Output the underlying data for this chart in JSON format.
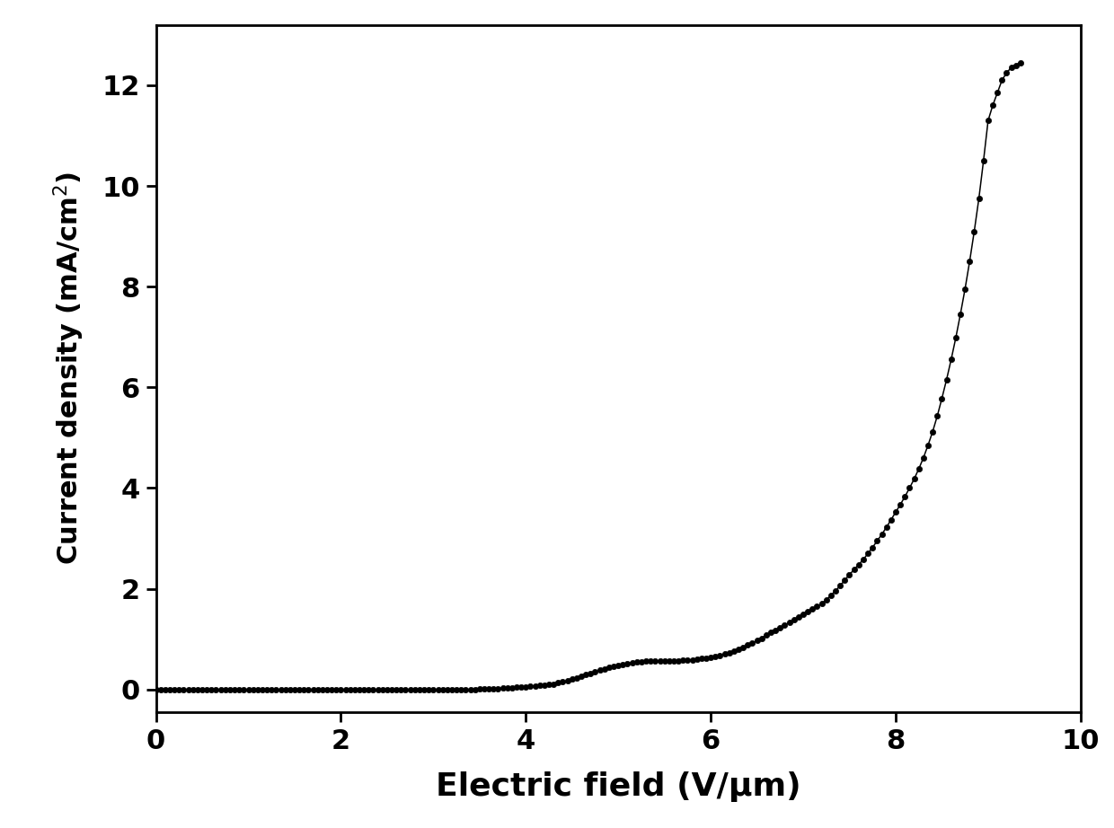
{
  "xlabel": "Electric field (V/μm)",
  "ylabel": "Current density (mA/cm$^2$)",
  "xlim": [
    0,
    10
  ],
  "ylim": [
    -0.45,
    13.2
  ],
  "xticks": [
    0,
    2,
    4,
    6,
    8,
    10
  ],
  "yticks": [
    0,
    2,
    4,
    6,
    8,
    10,
    12
  ],
  "line_color": "#000000",
  "marker_color": "#000000",
  "marker_size": 4.5,
  "line_width": 1.1,
  "background_color": "#ffffff",
  "xlabel_fontsize": 26,
  "ylabel_fontsize": 22,
  "tick_fontsize": 22,
  "x_data": [
    0.0,
    0.05,
    0.1,
    0.15,
    0.2,
    0.25,
    0.3,
    0.35,
    0.4,
    0.45,
    0.5,
    0.55,
    0.6,
    0.65,
    0.7,
    0.75,
    0.8,
    0.85,
    0.9,
    0.95,
    1.0,
    1.05,
    1.1,
    1.15,
    1.2,
    1.25,
    1.3,
    1.35,
    1.4,
    1.45,
    1.5,
    1.55,
    1.6,
    1.65,
    1.7,
    1.75,
    1.8,
    1.85,
    1.9,
    1.95,
    2.0,
    2.05,
    2.1,
    2.15,
    2.2,
    2.25,
    2.3,
    2.35,
    2.4,
    2.45,
    2.5,
    2.55,
    2.6,
    2.65,
    2.7,
    2.75,
    2.8,
    2.85,
    2.9,
    2.95,
    3.0,
    3.05,
    3.1,
    3.15,
    3.2,
    3.25,
    3.3,
    3.35,
    3.4,
    3.45,
    3.5,
    3.55,
    3.6,
    3.65,
    3.7,
    3.75,
    3.8,
    3.85,
    3.9,
    3.95,
    4.0,
    4.05,
    4.1,
    4.15,
    4.2,
    4.25,
    4.3,
    4.35,
    4.4,
    4.45,
    4.5,
    4.55,
    4.6,
    4.65,
    4.7,
    4.75,
    4.8,
    4.85,
    4.9,
    4.95,
    5.0,
    5.05,
    5.1,
    5.15,
    5.2,
    5.25,
    5.3,
    5.35,
    5.4,
    5.45,
    5.5,
    5.55,
    5.6,
    5.65,
    5.7,
    5.75,
    5.8,
    5.85,
    5.9,
    5.95,
    6.0,
    6.05,
    6.1,
    6.15,
    6.2,
    6.25,
    6.3,
    6.35,
    6.4,
    6.45,
    6.5,
    6.55,
    6.6,
    6.65,
    6.7,
    6.75,
    6.8,
    6.85,
    6.9,
    6.95,
    7.0,
    7.05,
    7.1,
    7.15,
    7.2,
    7.25,
    7.3,
    7.35,
    7.4,
    7.45,
    7.5,
    7.55,
    7.6,
    7.65,
    7.7,
    7.75,
    7.8,
    7.85,
    7.9,
    7.95,
    8.0,
    8.05,
    8.1,
    8.15,
    8.2,
    8.25,
    8.3,
    8.35,
    8.4,
    8.45,
    8.5,
    8.55,
    8.6,
    8.65,
    8.7,
    8.75,
    8.8,
    8.85,
    8.9,
    8.95,
    9.0,
    9.05,
    9.1,
    9.15,
    9.2,
    9.25,
    9.3,
    9.35
  ],
  "y_data": [
    0.0,
    0.0,
    0.0,
    0.0,
    0.0,
    0.0,
    0.0,
    0.0,
    0.0,
    0.0,
    0.0,
    0.0,
    0.0,
    0.0,
    0.0,
    0.0,
    0.0,
    0.0,
    0.0,
    0.0,
    0.0,
    0.0,
    0.0,
    0.0,
    0.0,
    0.0,
    0.0,
    0.0,
    0.0,
    0.0,
    0.0,
    0.0,
    0.0,
    0.0,
    0.0,
    0.0,
    0.0,
    0.0,
    0.0,
    0.0,
    0.0,
    0.0,
    0.0,
    0.0,
    0.0,
    0.0,
    0.0,
    0.0,
    0.0,
    0.0,
    0.0,
    0.0,
    0.0,
    0.0,
    0.0,
    0.0,
    0.0,
    0.0,
    0.0,
    0.0,
    0.0,
    0.0,
    0.0,
    0.0,
    0.0,
    0.0,
    0.0,
    0.0,
    0.0,
    0.0,
    0.005,
    0.008,
    0.01,
    0.015,
    0.02,
    0.025,
    0.03,
    0.035,
    0.04,
    0.045,
    0.05,
    0.06,
    0.07,
    0.08,
    0.09,
    0.1,
    0.11,
    0.13,
    0.15,
    0.17,
    0.2,
    0.23,
    0.26,
    0.29,
    0.32,
    0.35,
    0.38,
    0.41,
    0.44,
    0.46,
    0.48,
    0.5,
    0.52,
    0.53,
    0.54,
    0.55,
    0.56,
    0.57,
    0.57,
    0.57,
    0.56,
    0.56,
    0.57,
    0.57,
    0.58,
    0.58,
    0.59,
    0.6,
    0.61,
    0.62,
    0.64,
    0.66,
    0.68,
    0.7,
    0.73,
    0.76,
    0.8,
    0.84,
    0.88,
    0.92,
    0.97,
    1.02,
    1.08,
    1.13,
    1.18,
    1.23,
    1.28,
    1.33,
    1.38,
    1.44,
    1.5,
    1.55,
    1.6,
    1.65,
    1.7,
    1.78,
    1.87,
    1.96,
    2.06,
    2.17,
    2.28,
    2.38,
    2.48,
    2.58,
    2.7,
    2.82,
    2.95,
    3.08,
    3.22,
    3.37,
    3.52,
    3.67,
    3.83,
    4.0,
    4.18,
    4.38,
    4.6,
    4.85,
    5.12,
    5.43,
    5.78,
    6.15,
    6.55,
    6.98,
    7.45,
    7.95,
    8.5,
    9.1,
    9.75,
    10.5,
    11.3,
    11.6,
    11.85,
    12.1,
    12.25,
    12.35,
    12.4,
    12.45
  ]
}
